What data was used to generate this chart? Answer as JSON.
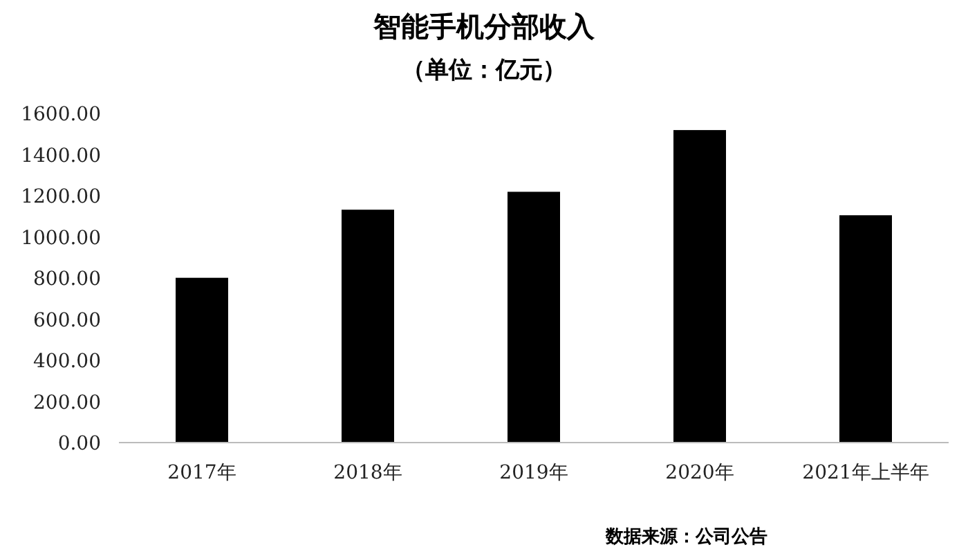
{
  "chart_data": {
    "type": "bar",
    "title": "智能手机分部收入",
    "subtitle": "（单位：亿元）",
    "categories": [
      "2017年",
      "2018年",
      "2019年",
      "2020年",
      "2021年上半年"
    ],
    "values": [
      801,
      1132,
      1219,
      1519,
      1105
    ],
    "color": "#000000",
    "ylim": [
      0,
      1600
    ],
    "yticks": [
      {
        "value": 0,
        "label": "0.00"
      },
      {
        "value": 200,
        "label": "200.00"
      },
      {
        "value": 400,
        "label": "400.00"
      },
      {
        "value": 600,
        "label": "600.00"
      },
      {
        "value": 800,
        "label": "800.00"
      },
      {
        "value": 1000,
        "label": "1000.00"
      },
      {
        "value": 1200,
        "label": "1200.00"
      },
      {
        "value": 1400,
        "label": "1400.00"
      },
      {
        "value": 1600,
        "label": "1600.00"
      }
    ],
    "grid": false,
    "annotations": [
      "数据来源：公司公告"
    ]
  }
}
